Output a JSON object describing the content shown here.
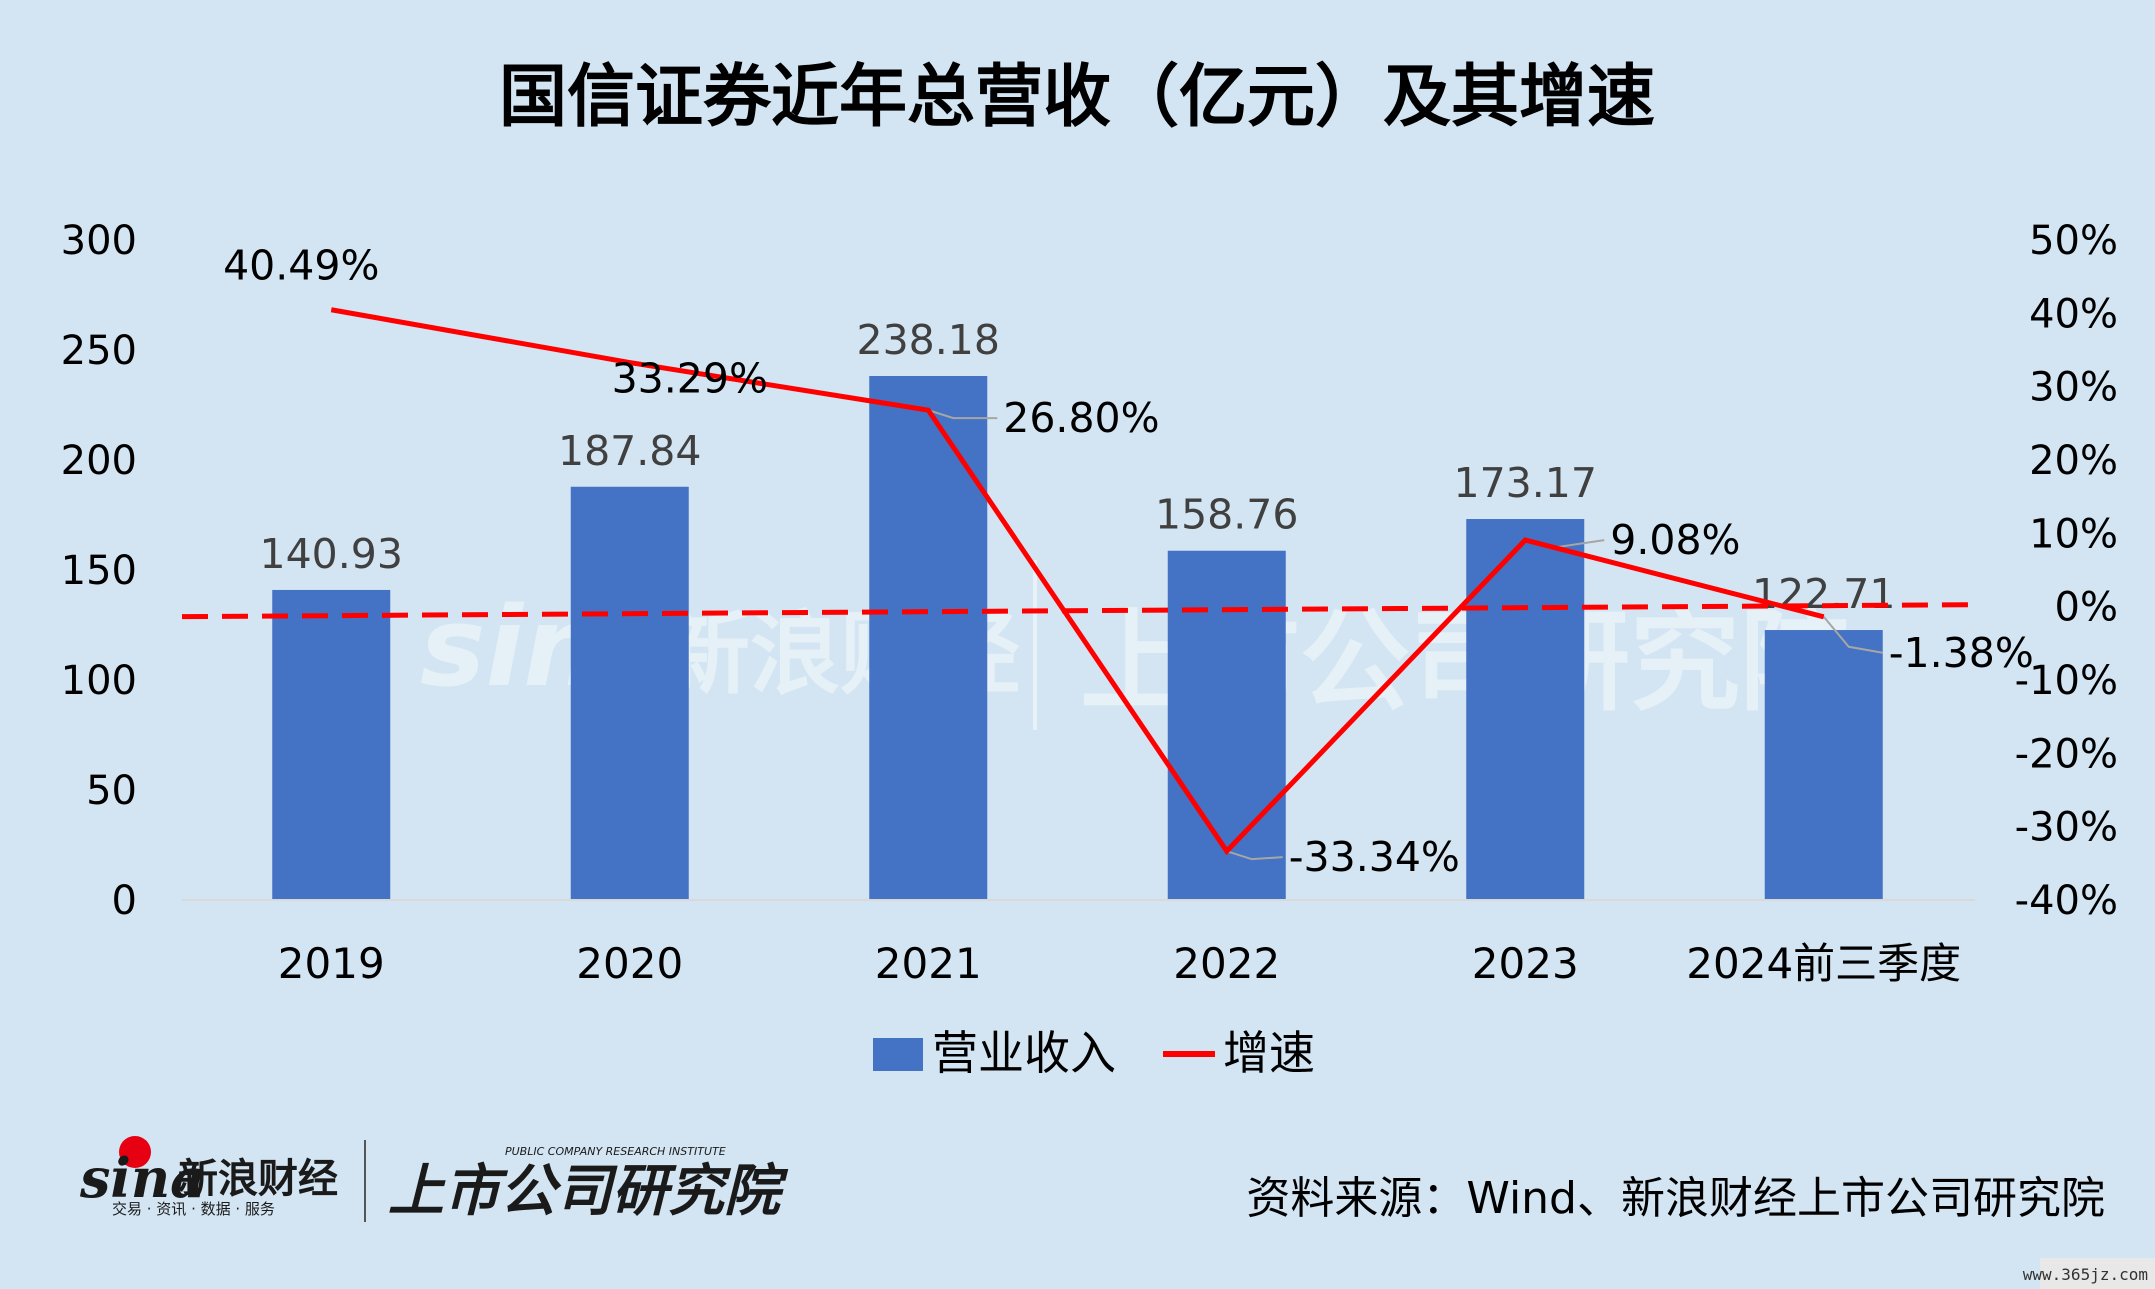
{
  "chart_data": {
    "type": "bar",
    "title": "国信证券近年总营收（亿元）及其增速",
    "categories": [
      "2019",
      "2020",
      "2021",
      "2022",
      "2023",
      "2024前三季度"
    ],
    "series": [
      {
        "name": "营业收入",
        "type": "bar",
        "axis": "left",
        "values": [
          140.93,
          187.84,
          238.18,
          158.76,
          173.17,
          122.71
        ],
        "labels": [
          "140.93",
          "187.84",
          "238.18",
          "158.76",
          "173.17",
          "122.71"
        ],
        "color": "#4472c4"
      },
      {
        "name": "增速",
        "type": "line",
        "axis": "right",
        "values": [
          40.49,
          33.29,
          26.8,
          -33.34,
          9.08,
          -1.38
        ],
        "labels": [
          "40.49%",
          "33.29%",
          "26.80%",
          "-33.34%",
          "9.08%",
          "-1.38%"
        ],
        "color": "#ff0000"
      }
    ],
    "y_left": {
      "ylim": [
        0,
        300
      ],
      "ticks": [
        "0",
        "50",
        "100",
        "150",
        "200",
        "250",
        "300"
      ]
    },
    "y_right": {
      "ylim": [
        -40,
        50
      ],
      "ticks": [
        "-40%",
        "-30%",
        "-20%",
        "-10%",
        "0%",
        "10%",
        "20%",
        "30%",
        "40%",
        "50%"
      ]
    },
    "reference_line": {
      "axis": "right",
      "value": 0,
      "style": "dashed",
      "color": "#ff0000"
    },
    "grid": false,
    "legend_position": "bottom-center"
  },
  "source_text": "资料来源：Wind、新浪财经上市公司研究院",
  "logos": {
    "sina": {
      "en": "sina",
      "zh": "新浪财经",
      "sub": "交易 · 资讯 · 数据 · 服务"
    },
    "institute": {
      "zh": "上市公司研究院",
      "en": "PUBLIC COMPANY RESEARCH INSTITUTE"
    }
  },
  "corner_watermark": "www.365jz.com"
}
